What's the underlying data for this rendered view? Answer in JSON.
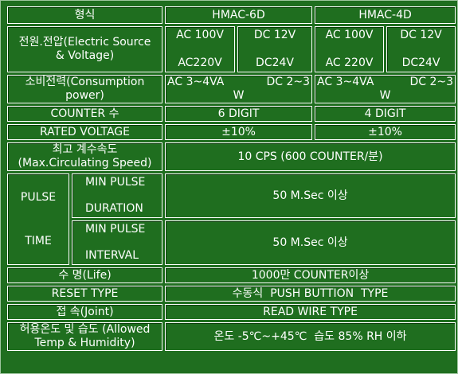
{
  "header": {
    "type_label": "형식",
    "model_6d": "HMAC-6D",
    "model_4d": "HMAC-4D"
  },
  "power_source": {
    "label_line1": "전원.전압(Electric Source",
    "label_line2": "& Voltage)",
    "ac_top": "AC 100V",
    "ac_bottom": "AC220V",
    "dc_top": "DC 12V",
    "dc_bottom": "DC24V",
    "ac_top_4d": "AC 100V",
    "ac_bottom_4d": "AC 220V",
    "dc_top_4d": "DC 12V",
    "dc_bottom_4d": "DC24V"
  },
  "consumption": {
    "label_line1": "소비전력(Consumption",
    "label_line2": "power)",
    "val_6d_ac": "AC 3~4VA",
    "val_6d_dc": "DC 2~3",
    "val_6d_unit": "W",
    "val_4d_ac": "AC 3~4VA",
    "val_4d_dc": "DC 2~3",
    "val_4d_unit": "W"
  },
  "counter": {
    "label": "COUNTER 수",
    "val_6d": "6 DIGIT",
    "val_4d": "4 DIGIT"
  },
  "rated_voltage": {
    "label": "RATED VOLTAGE",
    "val_6d": "±10%",
    "val_4d": "±10%"
  },
  "speed": {
    "label_line1": "최고 계수속도",
    "label_line2": "(Max.Circulating Speed)",
    "value": "10 CPS (600 COUNTER/분)"
  },
  "pulse": {
    "label_line1": "PULSE",
    "label_line2": "TIME",
    "duration_line1": "MIN PULSE",
    "duration_line2": "DURATION",
    "duration_value": "50 M.Sec 이상",
    "interval_line1": "MIN PULSE",
    "interval_line2": "INTERVAL",
    "interval_value": "50 M.Sec 이상"
  },
  "life": {
    "label": "수 명(Life)",
    "value": "1000만 COUNTER이상"
  },
  "reset": {
    "label": "RESET TYPE",
    "value": "수동식  PUSH BUTTION  TYPE"
  },
  "joint": {
    "label": "접 속(Joint)",
    "value": "READ WIRE TYPE"
  },
  "temp": {
    "label_line1": "허용온도 및 습도 (Allowed",
    "label_line2": "Temp & Humidity)",
    "value": "온도 -5℃~+45℃  습도 85% RH 이하"
  }
}
